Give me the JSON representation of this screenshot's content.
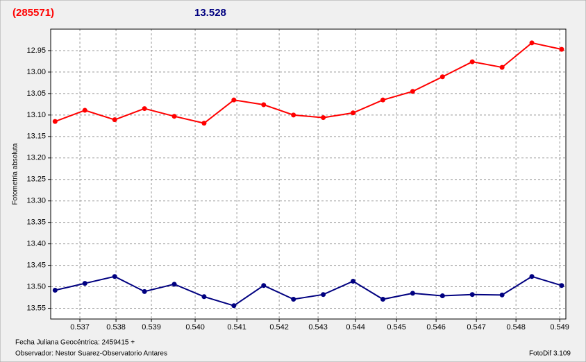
{
  "chart_data": {
    "type": "line",
    "header_left": "(285571)",
    "header_right": "13.528",
    "ylabel": "Fotometría absoluta",
    "footer_date": "Fecha Juliana Geocéntrica: 2459415 +",
    "footer_observer": "Observador: Nestor Suarez-Observatorio Antares",
    "footer_software": "FotoDif 3.109",
    "x": [
      0.53638,
      0.537125,
      0.53787,
      0.538615,
      0.53936,
      0.540105,
      0.54085,
      0.541595,
      0.54234,
      0.543085,
      0.54383,
      0.544575,
      0.54532,
      0.546065,
      0.54681,
      0.547555,
      0.5483,
      0.549045
    ],
    "series": [
      {
        "color": "#ff0000",
        "values": [
          13.115,
          13.089,
          13.111,
          13.085,
          13.103,
          13.119,
          13.065,
          13.076,
          13.1,
          13.106,
          13.095,
          13.065,
          13.045,
          13.011,
          12.976,
          12.989,
          12.932,
          12.947
        ]
      },
      {
        "color": "#000080",
        "values": [
          13.508,
          13.492,
          13.476,
          13.511,
          13.494,
          13.523,
          13.544,
          13.497,
          13.529,
          13.518,
          13.487,
          13.529,
          13.515,
          13.521,
          13.518,
          13.519,
          13.476,
          13.497
        ]
      }
    ],
    "xlim": [
      0.53627,
      0.54915
    ],
    "xticks": [
      0.537,
      {
        "value": 0.537903,
        "label": "0.538"
      },
      {
        "value": 0.538788,
        "label": "0.539"
      },
      {
        "value": 0.539882,
        "label": "0.540"
      },
      {
        "value": 0.540924,
        "label": "0.541"
      },
      {
        "value": 0.541983,
        "label": "0.542"
      },
      {
        "value": 0.542955,
        "label": "0.543"
      },
      {
        "value": 0.543892,
        "label": "0.544"
      },
      {
        "value": 0.544917,
        "label": "0.545"
      },
      {
        "value": 0.545906,
        "label": "0.546"
      },
      {
        "value": 0.546913,
        "label": "0.547"
      },
      {
        "value": 0.547903,
        "label": "0.548"
      },
      {
        "value": 0.548996,
        "label": "0.549"
      }
    ],
    "ylim": [
      12.9,
      13.575
    ],
    "y_inverted": true,
    "yticks": [
      12.95,
      {
        "value": 13,
        "label": "13.00"
      },
      13.05,
      {
        "value": 13.1,
        "label": "13.10"
      },
      13.15,
      {
        "value": 13.2,
        "label": "13.20"
      },
      13.25,
      {
        "value": 13.3,
        "label": "13.30"
      },
      13.35,
      {
        "value": 13.4,
        "label": "13.40"
      },
      13.45,
      {
        "value": 13.5,
        "label": "13.50"
      },
      13.55
    ],
    "grid": true
  }
}
